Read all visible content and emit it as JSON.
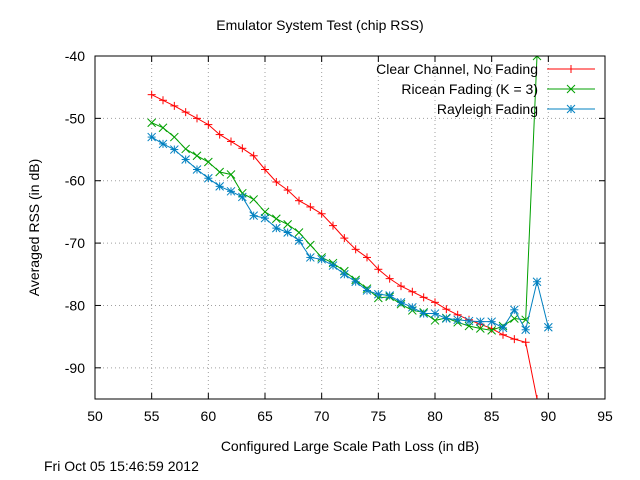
{
  "footer_timestamp": "Fri Oct 05 15:46:59 2012",
  "chart_data": {
    "type": "line",
    "title": "Emulator System Test (chip RSS)",
    "xlabel": "Configured Large Scale Path Loss (in dB)",
    "ylabel": "Averaged RSS (in dB)",
    "xlim": [
      50,
      95
    ],
    "ylim": [
      -95,
      -40
    ],
    "xticks": [
      50,
      55,
      60,
      65,
      70,
      75,
      80,
      85,
      90,
      95
    ],
    "yticks": [
      -90,
      -80,
      -70,
      -60,
      -50,
      -40
    ],
    "grid": true,
    "legend_position": "top-right",
    "series": [
      {
        "name": "Clear Channel, No Fading",
        "color": "#ff0000",
        "marker": "plus",
        "x": [
          55,
          56,
          57,
          58,
          59,
          60,
          61,
          62,
          63,
          64,
          65,
          66,
          67,
          68,
          69,
          70,
          71,
          72,
          73,
          74,
          75,
          76,
          77,
          78,
          79,
          80,
          81,
          82,
          83,
          84,
          85,
          86,
          87,
          88,
          89
        ],
        "y": [
          -46.2,
          -47.1,
          -48.0,
          -49.0,
          -50.0,
          -51.0,
          -52.6,
          -53.7,
          -54.8,
          -56.0,
          -58.2,
          -60.2,
          -61.5,
          -63.2,
          -64.2,
          -65.3,
          -67.2,
          -69.2,
          -71.0,
          -72.3,
          -74.2,
          -75.7,
          -76.9,
          -77.8,
          -78.7,
          -79.5,
          -80.6,
          -81.5,
          -82.3,
          -83.0,
          -83.7,
          -84.7,
          -85.4,
          -85.9,
          -95.0
        ]
      },
      {
        "name": "Ricean Fading (K = 3)",
        "color": "#00a000",
        "marker": "x",
        "x": [
          55,
          56,
          57,
          58,
          59,
          60,
          61,
          62,
          63,
          64,
          65,
          66,
          67,
          68,
          69,
          70,
          71,
          72,
          73,
          74,
          75,
          76,
          77,
          78,
          79,
          80,
          81,
          82,
          83,
          84,
          85,
          86,
          87,
          88,
          89
        ],
        "y": [
          -50.7,
          -51.5,
          -53.0,
          -54.9,
          -56.0,
          -57.0,
          -58.6,
          -59.0,
          -62.0,
          -63.0,
          -65.0,
          -66.1,
          -67.0,
          -68.3,
          -70.3,
          -72.3,
          -73.2,
          -74.5,
          -75.9,
          -77.3,
          -78.8,
          -78.6,
          -79.8,
          -80.8,
          -81.1,
          -82.4,
          -82.0,
          -82.7,
          -83.3,
          -83.7,
          -84.0,
          -83.3,
          -82.1,
          -82.3,
          -40.0
        ]
      },
      {
        "name": "Rayleigh Fading",
        "color": "#0080c0",
        "marker": "star",
        "x": [
          55,
          56,
          57,
          58,
          59,
          60,
          61,
          62,
          63,
          64,
          65,
          66,
          67,
          68,
          69,
          70,
          71,
          72,
          73,
          74,
          75,
          76,
          77,
          78,
          79,
          80,
          81,
          82,
          83,
          84,
          85,
          86,
          87,
          88,
          89,
          90
        ],
        "y": [
          -53.0,
          -54.1,
          -55.0,
          -56.6,
          -58.2,
          -59.6,
          -60.9,
          -61.7,
          -62.6,
          -65.6,
          -66.0,
          -67.6,
          -68.3,
          -69.6,
          -72.3,
          -72.6,
          -73.6,
          -75.0,
          -76.2,
          -77.6,
          -78.2,
          -78.4,
          -79.5,
          -80.3,
          -81.3,
          -81.3,
          -82.1,
          -82.3,
          -82.5,
          -82.6,
          -82.6,
          -83.6,
          -80.7,
          -83.9,
          -76.2,
          -83.5
        ]
      }
    ]
  }
}
